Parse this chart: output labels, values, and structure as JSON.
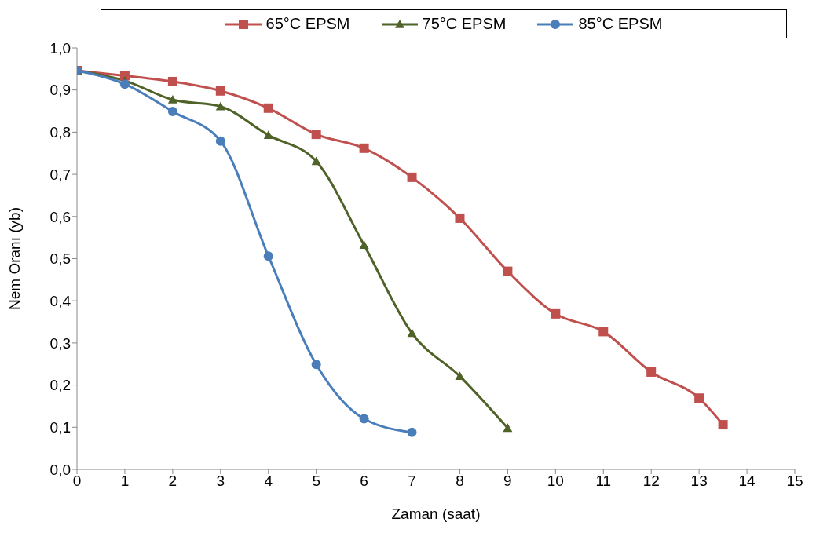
{
  "chart_data": {
    "type": "line",
    "xlabel": "Zaman (saat)",
    "ylabel": "Nem Oranı (yb)",
    "xlim": [
      0,
      15
    ],
    "xticks": [
      0,
      1,
      2,
      3,
      4,
      5,
      6,
      7,
      8,
      9,
      10,
      11,
      12,
      13,
      14,
      15
    ],
    "ylim": [
      0,
      1
    ],
    "yticks": [
      {
        "value": 0,
        "label": "0,0"
      },
      {
        "value": 0.1,
        "label": "0,1"
      },
      {
        "value": 0.2,
        "label": "0,2"
      },
      {
        "value": 0.3,
        "label": "0,3"
      },
      {
        "value": 0.4,
        "label": "0,4"
      },
      {
        "value": 0.5,
        "label": "0,5"
      },
      {
        "value": 0.6,
        "label": "0,6"
      },
      {
        "value": 0.7,
        "label": "0,7"
      },
      {
        "value": 0.8,
        "label": "0,8"
      },
      {
        "value": 0.9,
        "label": "0,9"
      },
      {
        "value": 1,
        "label": "1,0"
      }
    ],
    "grid": false,
    "legend": "top",
    "line_style": "solid",
    "series": [
      {
        "name": "65°C EPSM",
        "color": "#c0504d",
        "marker": "square",
        "x": [
          0,
          1,
          2,
          3,
          4,
          5,
          6,
          7,
          8,
          9,
          10,
          11,
          12,
          13,
          13.5
        ],
        "values": [
          0.946,
          0.934,
          0.92,
          0.898,
          0.857,
          0.795,
          0.762,
          0.693,
          0.596,
          0.47,
          0.369,
          0.327,
          0.231,
          0.169,
          0.106
        ]
      },
      {
        "name": "75°C EPSM",
        "color": "#4f6228",
        "marker": "triangle",
        "x": [
          0,
          1,
          2,
          3,
          4,
          5,
          6,
          7,
          8,
          9
        ],
        "values": [
          0.946,
          0.922,
          0.877,
          0.861,
          0.793,
          0.731,
          0.532,
          0.323,
          0.221,
          0.098
        ]
      },
      {
        "name": "85°C EPSM",
        "color": "#4a7ebb",
        "marker": "circle",
        "x": [
          0,
          1,
          2,
          3,
          4,
          5,
          6,
          7
        ],
        "values": [
          0.946,
          0.914,
          0.849,
          0.779,
          0.506,
          0.249,
          0.12,
          0.088
        ]
      }
    ]
  }
}
